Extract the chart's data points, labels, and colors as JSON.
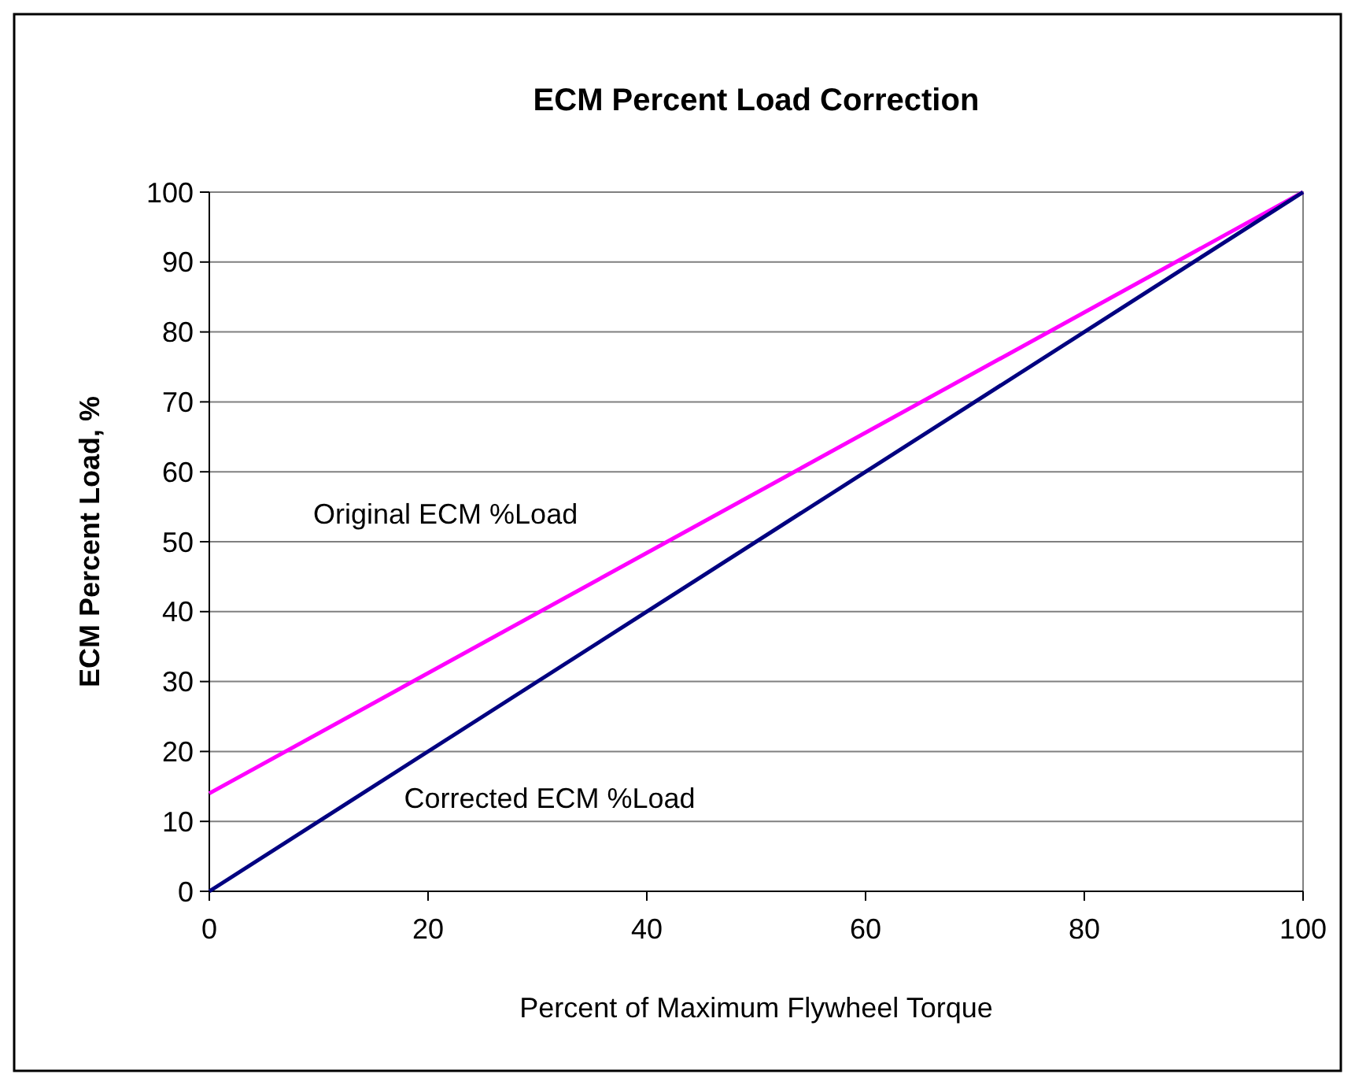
{
  "chart_data": {
    "type": "line",
    "title": "ECM Percent Load Correction",
    "xlabel": "Percent of Maximum Flywheel Torque",
    "ylabel": "ECM Percent Load, %",
    "series": [
      {
        "name": "Original ECM %Load",
        "color": "#ff00ff",
        "values": [
          14,
          100
        ]
      },
      {
        "name": "Corrected ECM %Load",
        "color": "#000080",
        "values": [
          0,
          100
        ]
      }
    ],
    "x": [
      0,
      100
    ],
    "xlim": [
      0,
      100
    ],
    "xticks": [
      0,
      20,
      40,
      60,
      80,
      100
    ],
    "ylim": [
      0,
      100
    ],
    "yticks": [
      0,
      10,
      20,
      30,
      40,
      50,
      60,
      70,
      80,
      90,
      100
    ],
    "grid": "y",
    "legend": false,
    "marker": "none",
    "line_style": "solid"
  }
}
